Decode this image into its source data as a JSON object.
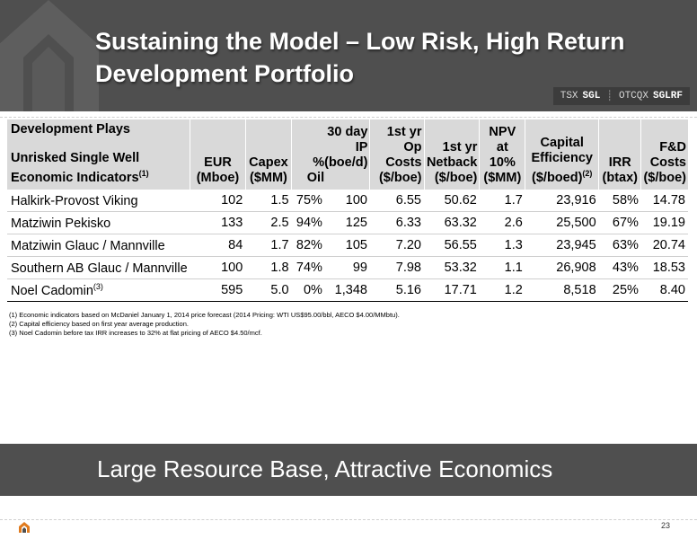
{
  "title": "Sustaining the Model – Low Risk, High Return Development Portfolio",
  "ticker": {
    "exchange1": "TSX",
    "symbol1": "SGL",
    "exchange2": "OTCQX",
    "symbol2": "SGLRF"
  },
  "table": {
    "group_label": "Development Plays",
    "row_header": "Unrisked Single Well Economic Indicators",
    "row_header_sup": "(1)",
    "columns": {
      "eur": {
        "l1": "EUR",
        "l2": "(Mboe)"
      },
      "capex": {
        "l1": "Capex",
        "l2": "($MM)"
      },
      "ip_l1": "30 day",
      "ip_l2": "IP",
      "oil_label": "% Oil",
      "ip_l3": "(boe/d)",
      "opcost": {
        "l1": "1st yr Op",
        "l2": "Costs",
        "l3": "($/boe)"
      },
      "netback": {
        "l1": "1st yr",
        "l2": "Netback",
        "l3": "($/boe)"
      },
      "npv": {
        "l1": "NPV at",
        "l2": "10%",
        "l3": "($MM)"
      },
      "capeff": {
        "l1": "Capital",
        "l2": "Efficiency",
        "l3": "($/boed)",
        "sup": "(2)"
      },
      "irr": {
        "l1": "IRR",
        "l2": "(btax)"
      },
      "fd": {
        "l1": "F&D",
        "l2": "Costs",
        "l3": "($/boe)"
      }
    },
    "rows": [
      {
        "name": "Halkirk-Provost Viking",
        "sup": "",
        "eur": "102",
        "capex": "1.5",
        "oil": "75%",
        "ip": "100",
        "opcost": "6.55",
        "netback": "50.62",
        "npv": "1.7",
        "capeff": "23,916",
        "irr": "58%",
        "fd": "14.78"
      },
      {
        "name": "Matziwin Pekisko",
        "sup": "",
        "eur": "133",
        "capex": "2.5",
        "oil": "94%",
        "ip": "125",
        "opcost": "6.33",
        "netback": "63.32",
        "npv": "2.6",
        "capeff": "25,500",
        "irr": "67%",
        "fd": "19.19"
      },
      {
        "name": "Matziwin Glauc / Mannville",
        "sup": "",
        "eur": "84",
        "capex": "1.7",
        "oil": "82%",
        "ip": "105",
        "opcost": "7.20",
        "netback": "56.55",
        "npv": "1.3",
        "capeff": "23,945",
        "irr": "63%",
        "fd": "20.74"
      },
      {
        "name": "Southern AB Glauc / Mannville",
        "sup": "",
        "eur": "100",
        "capex": "1.8",
        "oil": "74%",
        "ip": "99",
        "opcost": "7.98",
        "netback": "53.32",
        "npv": "1.1",
        "capeff": "26,908",
        "irr": "43%",
        "fd": "18.53"
      },
      {
        "name": "Noel Cadomin",
        "sup": "(3)",
        "eur": "595",
        "capex": "5.0",
        "oil": "0%",
        "ip": "1,348",
        "opcost": "5.16",
        "netback": "17.71",
        "npv": "1.2",
        "capeff": "8,518",
        "irr": "25%",
        "fd": "8.40"
      }
    ]
  },
  "footnotes": [
    "(1) Economic indicators based on McDaniel January 1, 2014 price forecast (2014 Pricing: WTI US$95.00/bbl, AECO $4.00/MMbtu).",
    "(2) Capital efficiency based on first year average production.",
    "(3)  Noel Cadomin before tax IRR increases to 32% at flat pricing of AECO $4.50/mcf."
  ],
  "banner": "Large Resource Base, Attractive Economics",
  "page_number": "23",
  "colors": {
    "header_bg": "#4f4f4f",
    "table_header_bg": "#d9d9d9",
    "logo_orange": "#e07b1f"
  },
  "icons": {
    "logo": "company-logo-icon",
    "header_decoration": "logo-watermark-icon"
  }
}
